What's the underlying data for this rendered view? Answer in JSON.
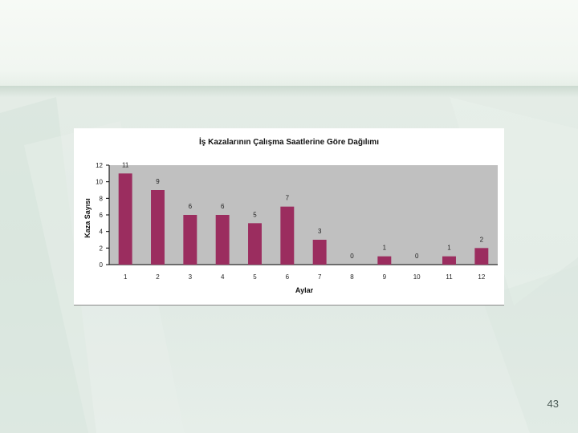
{
  "slide": {
    "page_number": "43"
  },
  "chart_data": {
    "type": "bar",
    "title": "İş Kazalarının Çalışma Saatlerine Göre Dağılımı",
    "xlabel": "Aylar",
    "ylabel": "Kaza Sayısı",
    "categories": [
      "1",
      "2",
      "3",
      "4",
      "5",
      "6",
      "7",
      "8",
      "9",
      "10",
      "11",
      "12"
    ],
    "values": [
      11,
      9,
      6,
      6,
      5,
      7,
      3,
      0,
      1,
      0,
      1,
      2
    ],
    "value_labels": [
      "11",
      "9",
      "6",
      "6",
      "5",
      "7",
      "3",
      "0",
      "1",
      "0",
      "1",
      "2"
    ],
    "ylim": [
      0,
      12
    ],
    "yticks": [
      "0",
      "2",
      "4",
      "6",
      "8",
      "10",
      "12"
    ],
    "bar_color": "#9b2d5f",
    "plot_background": "#c0c0c0",
    "grid": false,
    "legend": "none"
  }
}
